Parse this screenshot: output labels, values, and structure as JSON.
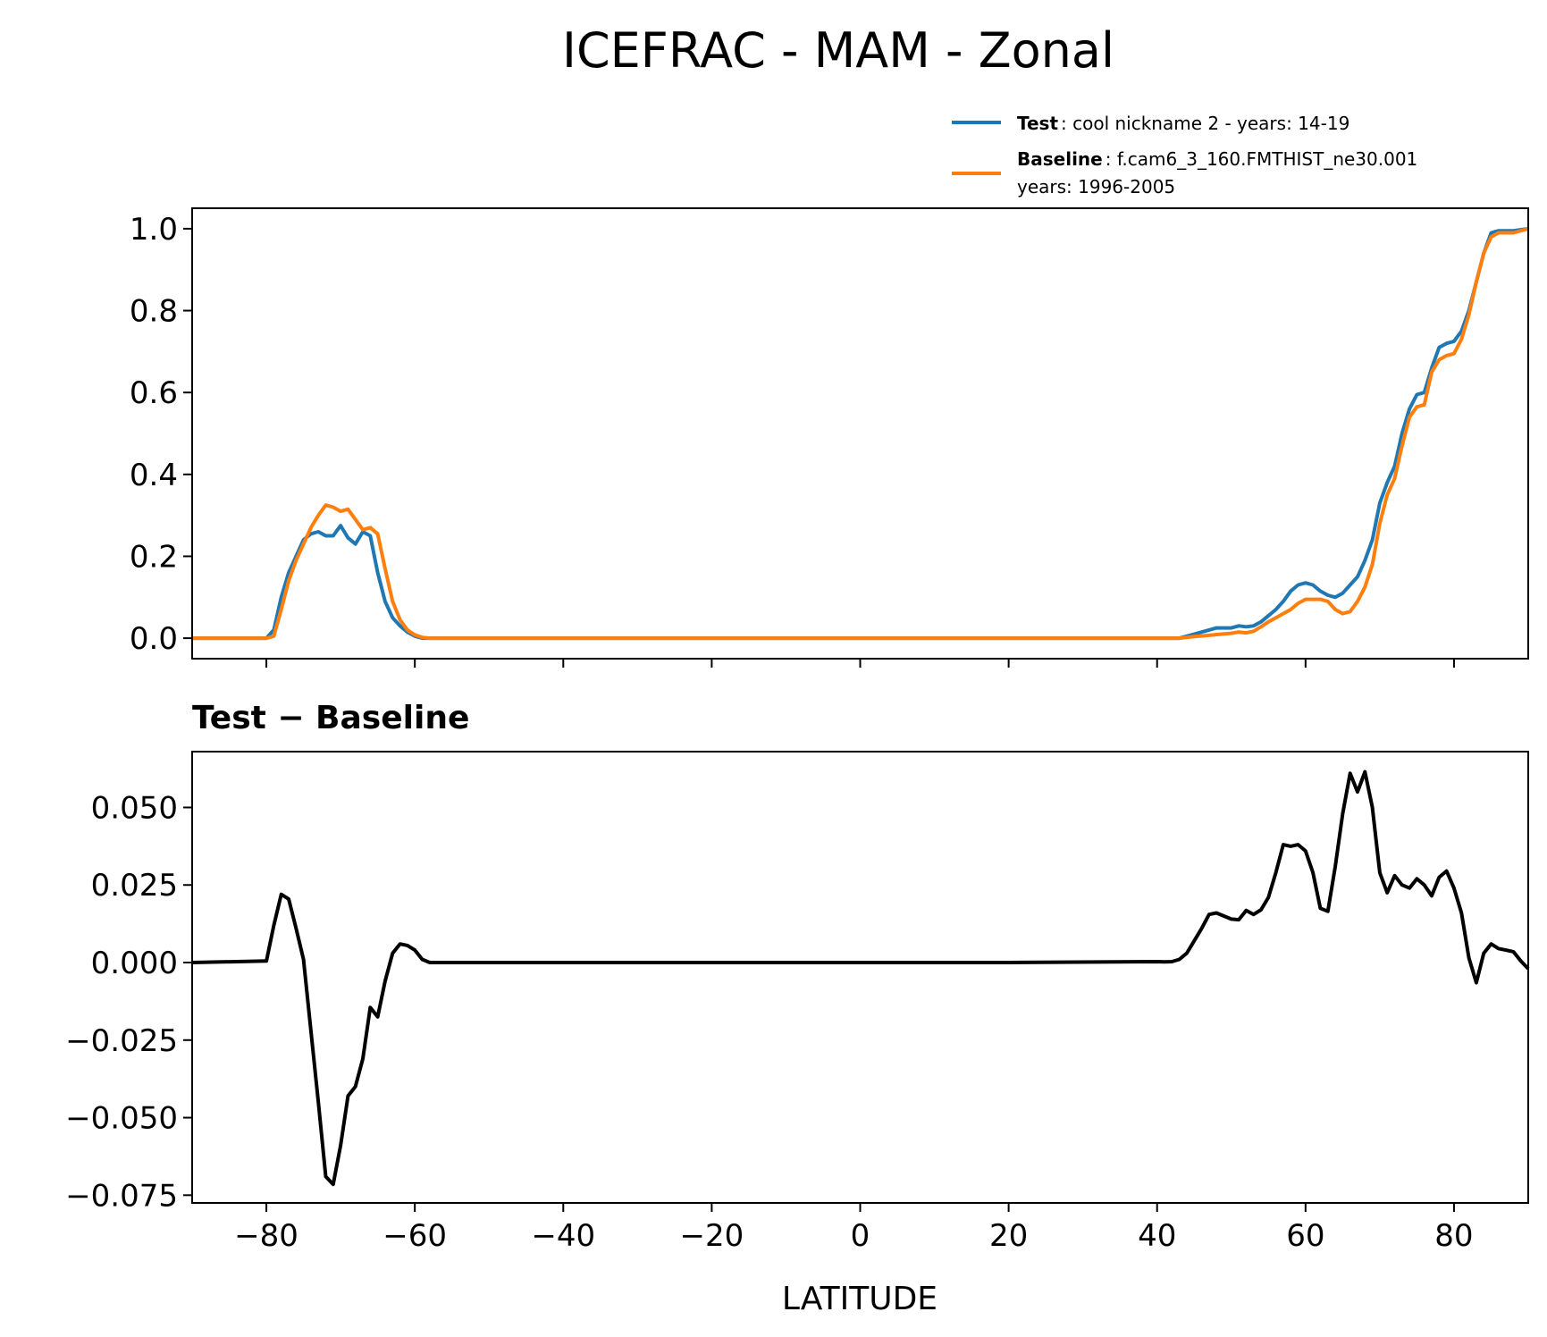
{
  "title": "ICEFRAC - MAM - Zonal",
  "legend": {
    "placement": "above-top-right",
    "entries": [
      {
        "name_bold": "Test",
        "desc": ": cool nickname 2 - years: 14-19",
        "desc2": "",
        "color": "#1f77b4"
      },
      {
        "name_bold": "Baseline",
        "desc": ": f.cam6_3_160.FMTHIST_ne30.001",
        "desc2": "years: 1996-2005",
        "color": "#ff7f0e"
      }
    ]
  },
  "diff_title": "Test − Baseline",
  "chart_data": [
    {
      "type": "line",
      "panel": "top",
      "xlim": [
        -90,
        90
      ],
      "ylim": [
        -0.05,
        1.05
      ],
      "xticks": [
        -80,
        -60,
        -40,
        -20,
        0,
        20,
        40,
        60,
        80
      ],
      "xtick_labels_shown": false,
      "yticks": [
        0.0,
        0.2,
        0.4,
        0.6,
        0.8,
        1.0
      ],
      "ytick_labels": [
        "0.0",
        "0.2",
        "0.4",
        "0.6",
        "0.8",
        "1.0"
      ],
      "grid": false,
      "series": [
        {
          "name": "Test",
          "color": "#1f77b4",
          "x": [
            -90,
            -80,
            -79,
            -78,
            -77,
            -76,
            -75,
            -74,
            -73,
            -72,
            -71,
            -70,
            -69,
            -68,
            -67,
            -66,
            -65,
            -64,
            -63,
            -62,
            -61,
            -60,
            -59,
            -58,
            -50,
            -40,
            -20,
            0,
            20,
            40,
            43,
            45,
            47,
            48,
            50,
            51,
            52,
            53,
            54,
            55,
            56,
            57,
            58,
            59,
            60,
            61,
            62,
            63,
            64,
            65,
            66,
            67,
            68,
            69,
            70,
            71,
            72,
            73,
            74,
            75,
            76,
            77,
            78,
            79,
            80,
            81,
            82,
            83,
            84,
            85,
            86,
            87,
            88,
            90
          ],
          "y": [
            0,
            0,
            0.02,
            0.1,
            0.16,
            0.2,
            0.24,
            0.255,
            0.26,
            0.25,
            0.25,
            0.275,
            0.245,
            0.23,
            0.26,
            0.25,
            0.16,
            0.09,
            0.05,
            0.03,
            0.015,
            0.005,
            0,
            0,
            0,
            0,
            0,
            0,
            0,
            0,
            0,
            0.01,
            0.02,
            0.025,
            0.025,
            0.03,
            0.028,
            0.03,
            0.04,
            0.055,
            0.07,
            0.09,
            0.115,
            0.13,
            0.135,
            0.13,
            0.115,
            0.105,
            0.1,
            0.11,
            0.13,
            0.15,
            0.19,
            0.24,
            0.33,
            0.38,
            0.42,
            0.5,
            0.56,
            0.595,
            0.6,
            0.66,
            0.71,
            0.72,
            0.725,
            0.75,
            0.8,
            0.87,
            0.94,
            0.99,
            0.995,
            0.995,
            0.995,
            1.0
          ]
        },
        {
          "name": "Baseline",
          "color": "#ff7f0e",
          "x": [
            -90,
            -80,
            -79,
            -78,
            -77,
            -76,
            -75,
            -74,
            -73,
            -72,
            -71,
            -70,
            -69,
            -68,
            -67,
            -66,
            -65,
            -64,
            -63,
            -62,
            -61,
            -60,
            -59,
            -58,
            -50,
            -40,
            -20,
            0,
            20,
            40,
            43,
            45,
            47,
            48,
            50,
            51,
            52,
            53,
            54,
            55,
            56,
            57,
            58,
            59,
            60,
            61,
            62,
            63,
            64,
            65,
            66,
            67,
            68,
            69,
            70,
            71,
            72,
            73,
            74,
            75,
            76,
            77,
            78,
            79,
            80,
            81,
            82,
            83,
            84,
            85,
            86,
            87,
            88,
            90
          ],
          "y": [
            0,
            0,
            0.005,
            0.07,
            0.14,
            0.19,
            0.23,
            0.27,
            0.3,
            0.325,
            0.32,
            0.31,
            0.315,
            0.29,
            0.265,
            0.27,
            0.255,
            0.17,
            0.09,
            0.045,
            0.02,
            0.008,
            0.002,
            0,
            0,
            0,
            0,
            0,
            0,
            0,
            0,
            0.004,
            0.007,
            0.009,
            0.012,
            0.015,
            0.013,
            0.017,
            0.028,
            0.04,
            0.05,
            0.06,
            0.07,
            0.085,
            0.095,
            0.095,
            0.095,
            0.09,
            0.07,
            0.06,
            0.065,
            0.09,
            0.125,
            0.18,
            0.28,
            0.35,
            0.39,
            0.47,
            0.54,
            0.565,
            0.57,
            0.65,
            0.68,
            0.69,
            0.695,
            0.73,
            0.79,
            0.87,
            0.94,
            0.98,
            0.99,
            0.99,
            0.99,
            1.0
          ]
        }
      ]
    },
    {
      "type": "line",
      "panel": "bottom",
      "title": "Test − Baseline",
      "xlabel": "LATITUDE",
      "xlim": [
        -90,
        90
      ],
      "ylim": [
        -0.0775,
        0.068
      ],
      "xticks": [
        -80,
        -60,
        -40,
        -20,
        0,
        20,
        40,
        60,
        80
      ],
      "xtick_labels": [
        "−80",
        "−60",
        "−40",
        "−20",
        "0",
        "20",
        "40",
        "60",
        "80"
      ],
      "yticks": [
        0.05,
        0.025,
        0.0,
        -0.025,
        -0.05,
        -0.075
      ],
      "ytick_labels": [
        "0.050",
        "0.025",
        "0.000",
        "−0.025",
        "−0.050",
        "−0.075"
      ],
      "grid": false,
      "series": [
        {
          "name": "Test − Baseline",
          "color": "#000000",
          "x": [
            -90,
            -80,
            -79,
            -78,
            -77,
            -76,
            -75,
            -74,
            -73,
            -72,
            -71,
            -70,
            -69,
            -68,
            -67,
            -66,
            -65,
            -64,
            -63,
            -62,
            -61,
            -60,
            -59,
            -58,
            -50,
            -40,
            -20,
            0,
            20,
            40,
            41,
            42,
            43,
            44,
            45,
            46,
            47,
            48,
            49,
            50,
            51,
            52,
            53,
            54,
            55,
            56,
            57,
            58,
            59,
            60,
            61,
            62,
            63,
            64,
            65,
            66,
            67,
            68,
            69,
            70,
            71,
            72,
            73,
            74,
            75,
            76,
            77,
            78,
            79,
            80,
            81,
            82,
            83,
            84,
            85,
            86,
            87,
            88,
            89,
            90
          ],
          "y": [
            0,
            0.0005,
            0.012,
            0.022,
            0.0205,
            0.011,
            0.001,
            -0.022,
            -0.045,
            -0.069,
            -0.0715,
            -0.059,
            -0.043,
            -0.04,
            -0.031,
            -0.0145,
            -0.0175,
            -0.006,
            0.003,
            0.006,
            0.0055,
            0.004,
            0.001,
            0,
            0,
            0,
            0,
            0,
            0,
            0.0003,
            0.0002,
            0.0003,
            0.001,
            0.003,
            0.007,
            0.011,
            0.0155,
            0.016,
            0.015,
            0.014,
            0.0138,
            0.0168,
            0.0155,
            0.017,
            0.021,
            0.029,
            0.038,
            0.0375,
            0.038,
            0.036,
            0.029,
            0.0175,
            0.0165,
            0.031,
            0.048,
            0.061,
            0.055,
            0.0615,
            0.05,
            0.029,
            0.0225,
            0.028,
            0.025,
            0.024,
            0.027,
            0.025,
            0.0215,
            0.0275,
            0.0295,
            0.024,
            0.016,
            0.0015,
            -0.0065,
            0.003,
            0.006,
            0.0045,
            0.004,
            0.0035,
            0.0005,
            -0.002
          ]
        }
      ]
    }
  ]
}
